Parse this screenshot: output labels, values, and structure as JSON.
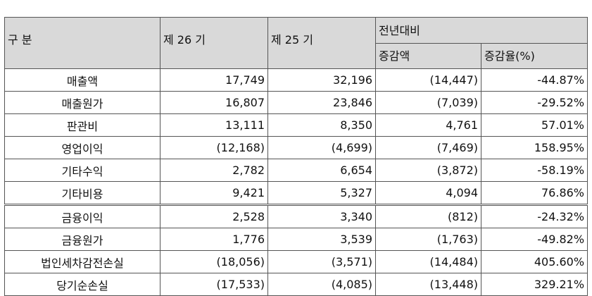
{
  "header": {
    "category": "구 분",
    "col_26": "제 26 기",
    "col_25": "제 25 기",
    "group": "전년대비",
    "change_amount": "증감액",
    "change_rate": "증감율(%)"
  },
  "rows": [
    {
      "label": "매출액",
      "v26": "17,749",
      "v25": "32,196",
      "diff": "(14,447)",
      "rate": "-44.87%"
    },
    {
      "label": "매출원가",
      "v26": "16,807",
      "v25": "23,846",
      "diff": "(7,039)",
      "rate": "-29.52%"
    },
    {
      "label": "판관비",
      "v26": "13,111",
      "v25": "8,350",
      "diff": "4,761",
      "rate": "57.01%"
    },
    {
      "label": "영업이익",
      "v26": "(12,168)",
      "v25": "(4,699)",
      "diff": "(7,469)",
      "rate": "158.95%"
    },
    {
      "label": "기타수익",
      "v26": "2,782",
      "v25": "6,654",
      "diff": "(3,872)",
      "rate": "-58.19%"
    },
    {
      "label": "기타비용",
      "v26": "9,421",
      "v25": "5,327",
      "diff": "4,094",
      "rate": "76.86%"
    },
    {
      "label": "금융이익",
      "v26": "2,528",
      "v25": "3,340",
      "diff": "(812)",
      "rate": "-24.32%"
    },
    {
      "label": "금융원가",
      "v26": "1,776",
      "v25": "3,539",
      "diff": "(1,763)",
      "rate": "-49.82%"
    },
    {
      "label": "법인세차감전손실",
      "v26": "(18,056)",
      "v25": "(3,571)",
      "diff": "(14,484)",
      "rate": "405.60%"
    },
    {
      "label": "당기순손실",
      "v26": "(17,533)",
      "v25": "(4,085)",
      "diff": "(13,448)",
      "rate": "329.21%"
    }
  ]
}
